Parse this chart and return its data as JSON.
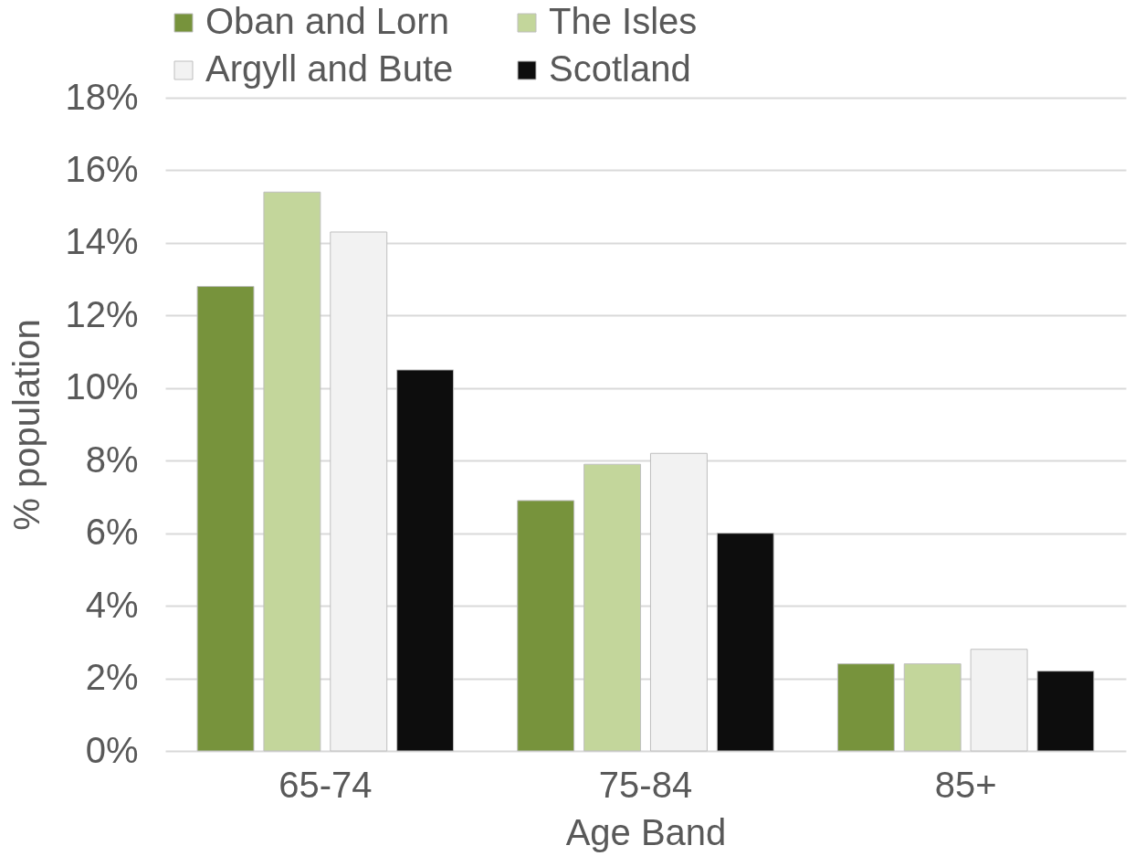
{
  "chart_data": {
    "type": "bar",
    "xlabel": "Age Band",
    "ylabel": "% population",
    "categories": [
      "65-74",
      "75-84",
      "85+"
    ],
    "series": [
      {
        "name": "Oban and Lorn",
        "color": "#77933c",
        "values": [
          12.8,
          6.9,
          2.4
        ]
      },
      {
        "name": "The Isles",
        "color": "#c3d69b",
        "values": [
          15.4,
          7.9,
          2.4
        ]
      },
      {
        "name": "Argyll and Bute",
        "color": "#f2f2f2",
        "values": [
          14.3,
          8.2,
          2.8
        ]
      },
      {
        "name": "Scotland",
        "color": "#0d0d0d",
        "values": [
          10.5,
          6.0,
          2.2
        ]
      }
    ],
    "ylim": [
      0,
      18
    ],
    "yticks": [
      {
        "value": 0,
        "label": "0%"
      },
      {
        "value": 2,
        "label": "2%"
      },
      {
        "value": 4,
        "label": "4%"
      },
      {
        "value": 6,
        "label": "6%"
      },
      {
        "value": 8,
        "label": "8%"
      },
      {
        "value": 10,
        "label": "10%"
      },
      {
        "value": 12,
        "label": "12%"
      },
      {
        "value": 14,
        "label": "14%"
      },
      {
        "value": 16,
        "label": "16%"
      },
      {
        "value": 18,
        "label": "18%"
      }
    ],
    "grid": "y",
    "legend": "top"
  }
}
